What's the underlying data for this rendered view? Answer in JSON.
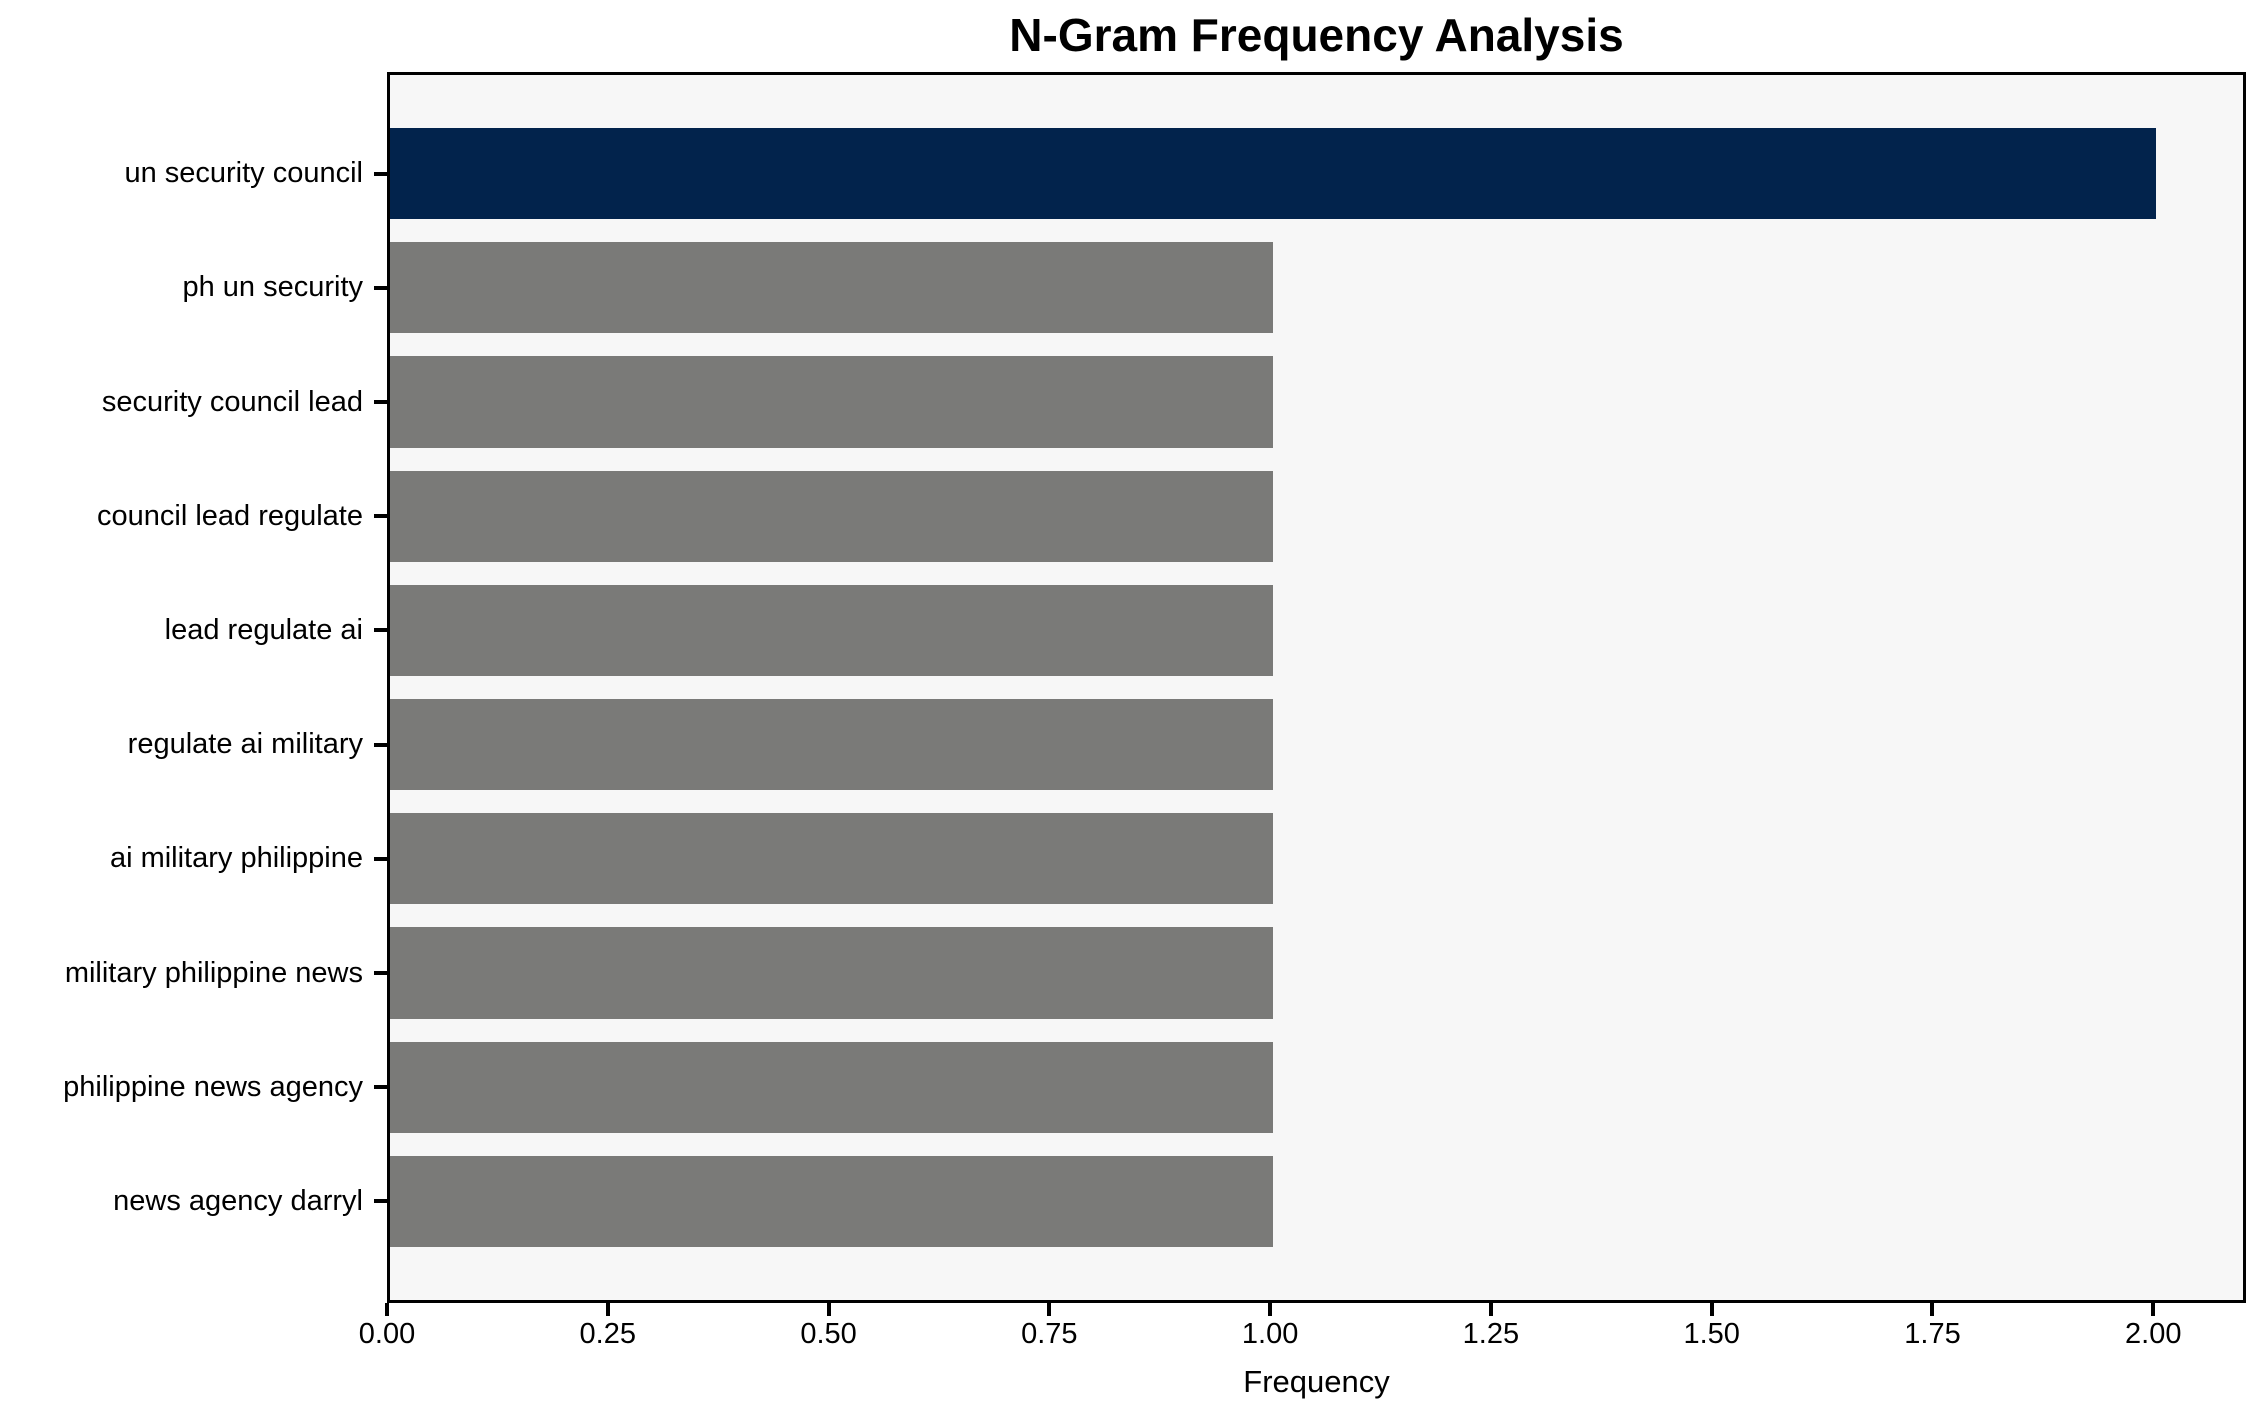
{
  "chart_data": {
    "type": "bar",
    "orientation": "horizontal",
    "title": "N-Gram Frequency Analysis",
    "xlabel": "Frequency",
    "ylabel": "",
    "categories": [
      "un security council",
      "ph un security",
      "security council lead",
      "council lead regulate",
      "lead regulate ai",
      "regulate ai military",
      "ai military philippine",
      "military philippine news",
      "philippine news agency",
      "news agency darryl"
    ],
    "values": [
      2,
      1,
      1,
      1,
      1,
      1,
      1,
      1,
      1,
      1
    ],
    "xlim": [
      0,
      2.105
    ],
    "x_tick_values": [
      0,
      0.25,
      0.5,
      0.75,
      1.0,
      1.25,
      1.5,
      1.75,
      2.0
    ],
    "x_tick_labels": [
      "0.00",
      "0.25",
      "0.50",
      "0.75",
      "1.00",
      "1.25",
      "1.50",
      "1.75",
      "2.00"
    ],
    "grid": false,
    "legend": "none",
    "colors": {
      "highlight_bar": "#02234c",
      "default_bar": "#7a7a78",
      "plot_background": "#f7f7f7",
      "figure_background": "#ffffff",
      "spine": "#000000",
      "text": "#000000"
    },
    "highlight_index": 0
  }
}
